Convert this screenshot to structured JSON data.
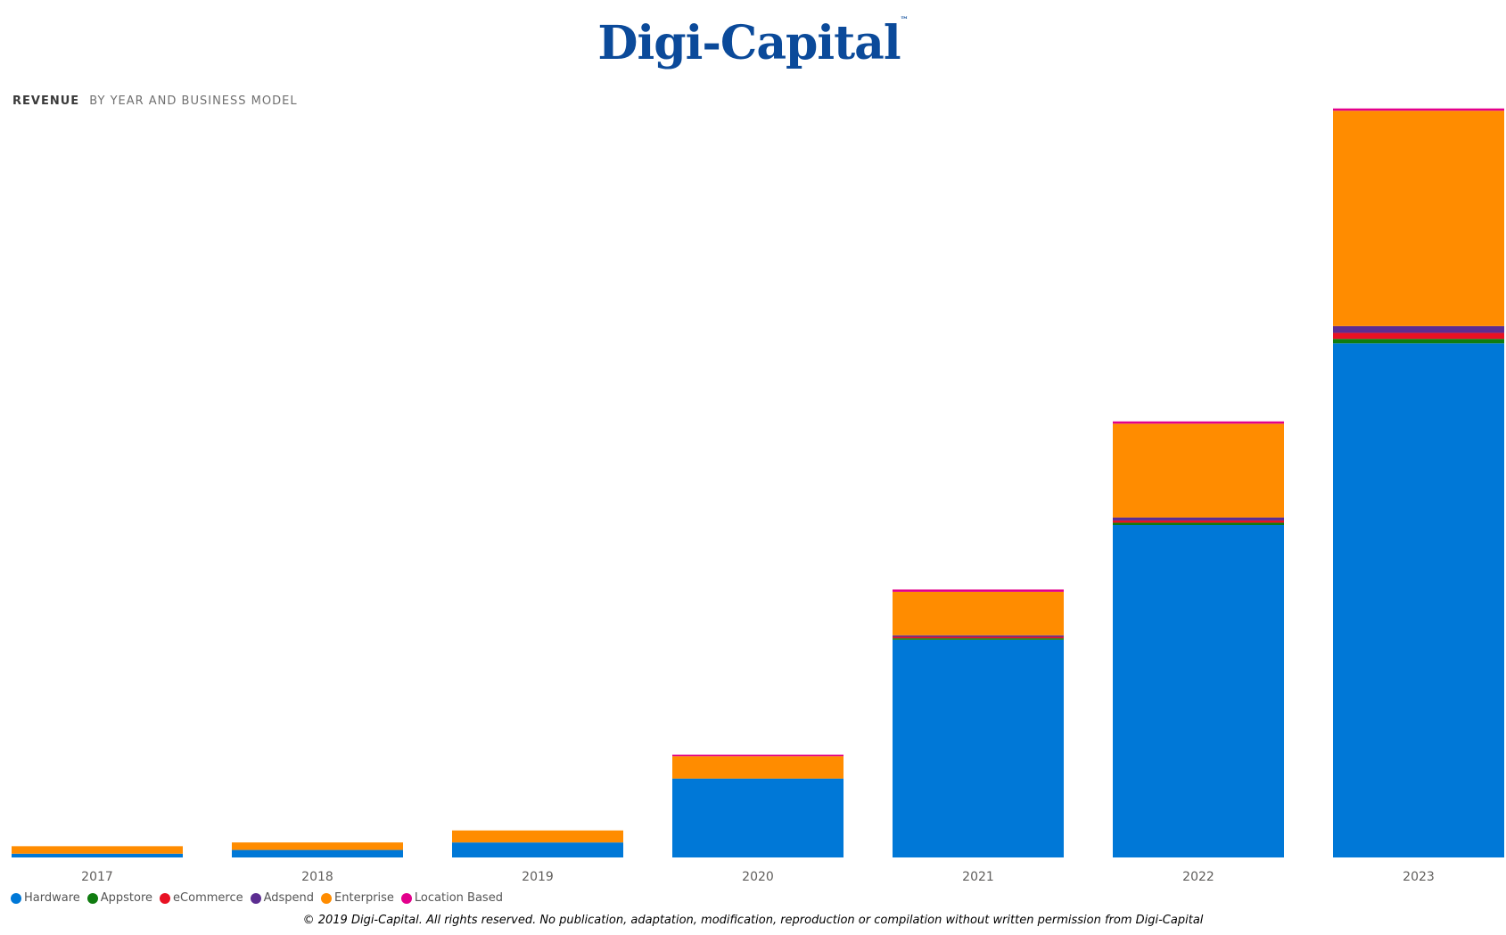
{
  "logo": {
    "text": "Digi-Capital",
    "tm": "™"
  },
  "header": {
    "title": "REVENUE",
    "subtitle": "BY YEAR AND BUSINESS MODEL"
  },
  "footer": {
    "text": "© 2019 Digi-Capital. All rights reserved. No publication, adaptation, modification, reproduction or compilation without written permission from Digi-Capital"
  },
  "chart_data": {
    "type": "bar",
    "stacked": true,
    "title": "REVENUE",
    "subtitle": "BY YEAR AND BUSINESS MODEL",
    "xlabel": "",
    "ylabel": "",
    "ylim": [
      0,
      100
    ],
    "grid": false,
    "legend_position": "bottom-left",
    "categories": [
      "2017",
      "2018",
      "2019",
      "2020",
      "2021",
      "2022",
      "2023"
    ],
    "series": [
      {
        "name": "Hardware",
        "color": "#0078d7",
        "values": [
          0.5,
          1.0,
          2.0,
          10.5,
          29.0,
          44.3,
          68.5
        ]
      },
      {
        "name": "Appstore",
        "color": "#107c10",
        "values": [
          0,
          0,
          0,
          0,
          0.2,
          0.3,
          0.6
        ]
      },
      {
        "name": "eCommerce",
        "color": "#e81123",
        "values": [
          0,
          0,
          0,
          0,
          0.2,
          0.3,
          0.8
        ]
      },
      {
        "name": "Adspend",
        "color": "#5c2d91",
        "values": [
          0,
          0,
          0,
          0,
          0.2,
          0.4,
          0.9
        ]
      },
      {
        "name": "Enterprise",
        "color": "#ff8c00",
        "values": [
          1.0,
          1.0,
          1.6,
          3.0,
          5.8,
          12.5,
          28.7
        ]
      },
      {
        "name": "Location Based",
        "color": "#e3008c",
        "values": [
          0,
          0,
          0,
          0.2,
          0.3,
          0.3,
          0.3
        ]
      }
    ]
  }
}
